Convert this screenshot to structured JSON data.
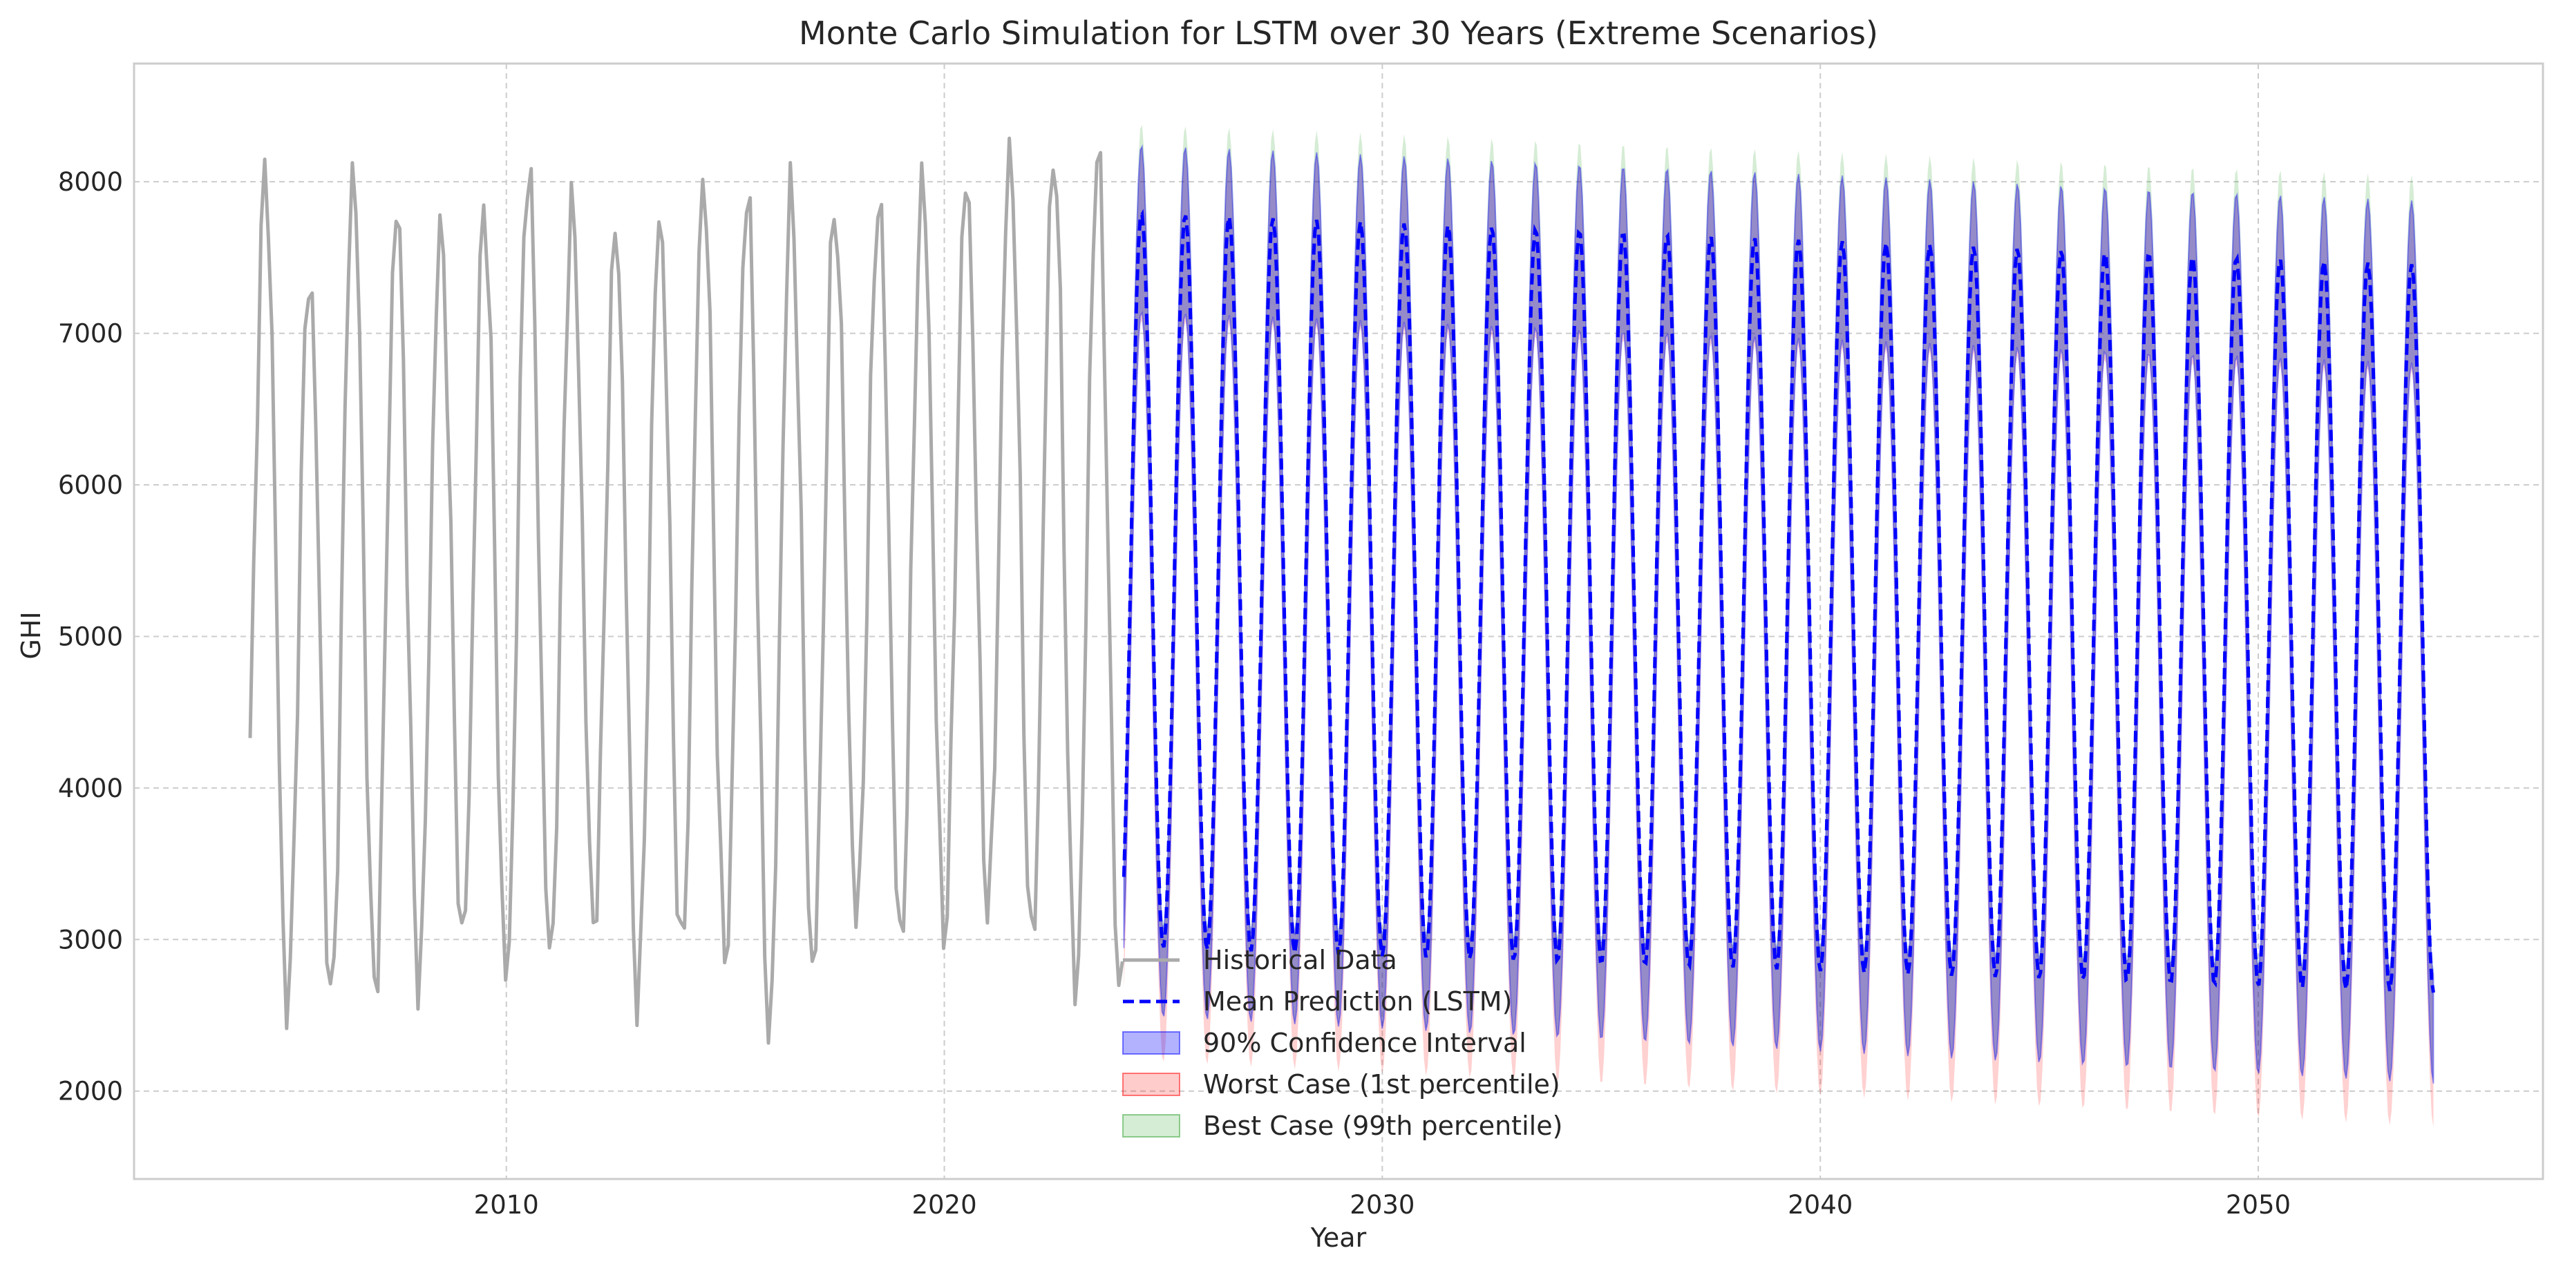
{
  "chart_data": {
    "type": "line",
    "title": "Monte Carlo Simulation for LSTM over 30 Years (Extreme Scenarios)",
    "xlabel": "Year",
    "ylabel": "GHI",
    "xlim": [
      2001.5,
      2056.5
    ],
    "ylim": [
      1420,
      8780
    ],
    "x_ticks": [
      2010,
      2020,
      2030,
      2040,
      2050
    ],
    "y_ticks": [
      2000,
      3000,
      4000,
      5000,
      6000,
      7000,
      8000
    ],
    "grid": true,
    "legend_position": "lower center",
    "series": [
      {
        "name": "Historical Data",
        "kind": "line",
        "color": "#aaaaaa",
        "note": "monthly historical GHI, 2004-2023",
        "annual_peaks": [
          8050,
          7400,
          8070,
          7830,
          7680,
          7830,
          8130,
          7830,
          7680,
          7780,
          8020,
          7930,
          7920,
          7850,
          7900,
          8000,
          8000,
          8200,
          8210,
          8200
        ],
        "annual_troughs": [
          3250,
          2550,
          2560,
          2660,
          2740,
          2980,
          2740,
          2880,
          3100,
          2600,
          2880,
          2870,
          2400,
          2780,
          3140,
          2940,
          3050,
          3200,
          2940,
          2650
        ]
      },
      {
        "name": "Mean Prediction (LSTM)",
        "kind": "dashed-line",
        "color": "#0000ff",
        "x_start": 2024.1,
        "x_end": 2054.0,
        "peak_start": 7800,
        "peak_end": 7450,
        "trough_start": 2950,
        "trough_end": 2650
      },
      {
        "name": "90% Confidence Interval",
        "kind": "band",
        "color": "#0000ff",
        "upper_peak_start": 8250,
        "upper_peak_end": 7870,
        "lower_trough_start": 2500,
        "lower_trough_end": 2050
      },
      {
        "name": "Worst Case (1st percentile)",
        "kind": "band",
        "color": "#ff0000",
        "lower_trough_start": 2200,
        "lower_trough_end": 1760
      },
      {
        "name": "Best Case (99th percentile)",
        "kind": "band",
        "color": "#2ca02c",
        "upper_peak_start": 8390,
        "upper_peak_end": 8040
      }
    ]
  }
}
